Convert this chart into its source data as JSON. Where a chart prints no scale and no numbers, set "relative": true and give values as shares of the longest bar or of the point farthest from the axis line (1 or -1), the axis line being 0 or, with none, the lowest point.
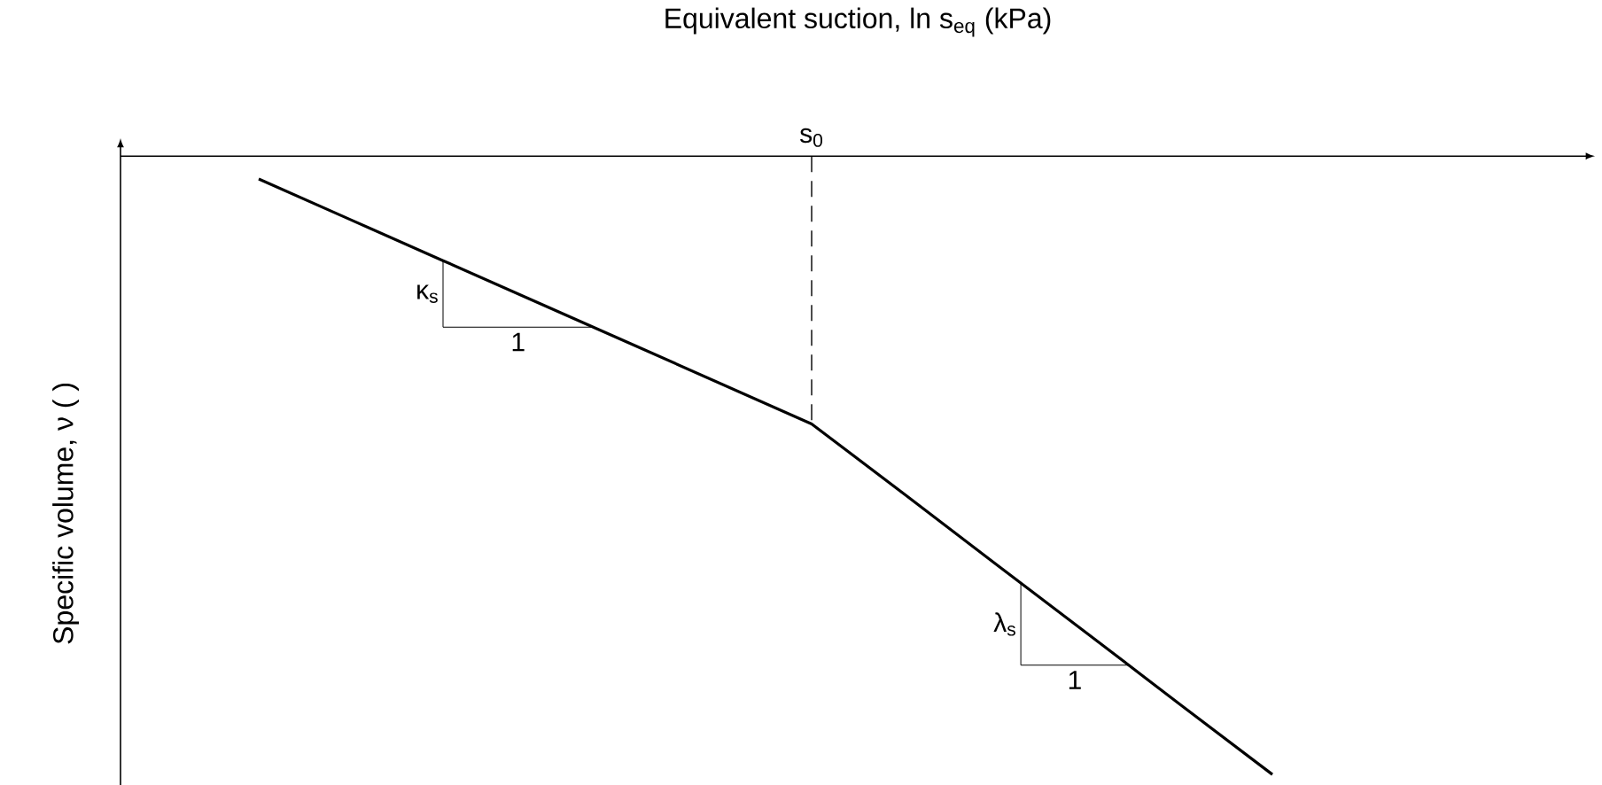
{
  "chart_data": {
    "type": "line",
    "relative": true,
    "xlabel": "Equivalent suction, ln s$_{eq}$ (kPa)",
    "ylabel": "Specific volume, ν ( )",
    "categories": [
      null,
      null,
      null,
      null,
      null,
      null,
      null,
      null,
      null,
      null,
      null,
      null
    ],
    "values": [
      -0.037,
      -0.103,
      -0.169,
      -0.235,
      -0.301,
      -0.367,
      -0.433,
      -0.546,
      -0.66,
      -0.773,
      -0.887,
      -1
    ],
    "color": "#000000",
    "annotations": [
      {
        "text": "s$_{0}$"
      },
      "κ$_{s}$",
      "1",
      "λ$_{s}$",
      "1"
    ]
  }
}
